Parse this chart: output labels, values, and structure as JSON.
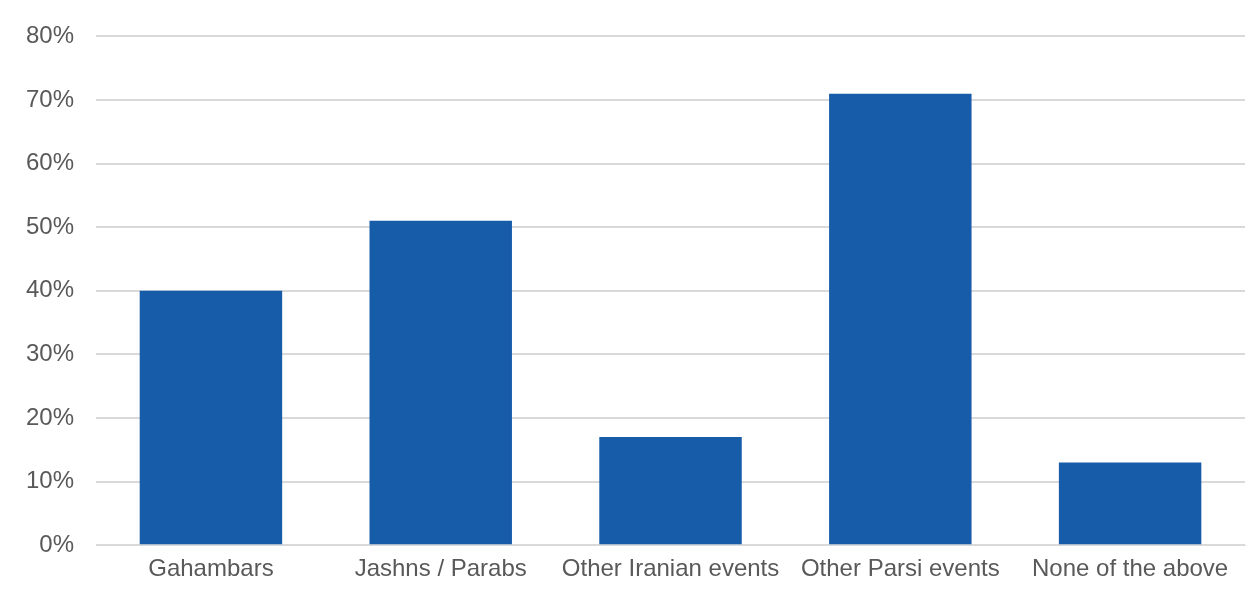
{
  "chart_data": {
    "type": "bar",
    "categories": [
      "Gahambars",
      "Jashns / Parabs",
      "Other Iranian events",
      "Other Parsi events",
      "None of the above"
    ],
    "values": [
      40,
      51,
      17,
      71,
      13
    ],
    "color": "#175ca9",
    "ylim": [
      0,
      80
    ],
    "yticks": [
      {
        "value": 0,
        "label": "0%"
      },
      {
        "value": 10,
        "label": "10%"
      },
      {
        "value": 20,
        "label": "20%"
      },
      {
        "value": 30,
        "label": "30%"
      },
      {
        "value": 40,
        "label": "40%"
      },
      {
        "value": 50,
        "label": "50%"
      },
      {
        "value": 60,
        "label": "60%"
      },
      {
        "value": 70,
        "label": "70%"
      },
      {
        "value": 80,
        "label": "80%"
      }
    ],
    "grid": "y",
    "legend": false
  }
}
